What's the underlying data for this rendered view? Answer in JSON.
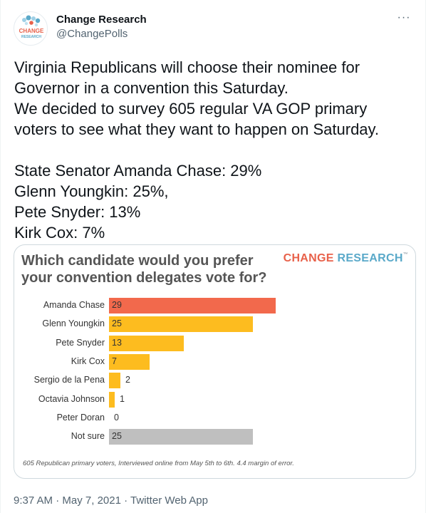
{
  "author": {
    "display_name": "Change Research",
    "handle": "@ChangePolls",
    "avatar_text_top": "CHANGE",
    "avatar_text_bottom": "RESEARCH"
  },
  "more_label": "···",
  "tweet": {
    "lines": [
      "Virginia Republicans will choose their nominee for",
      "Governor in a convention this Saturday.",
      "We decided to survey 605 regular VA GOP primary",
      "voters to see what they want to happen on Saturday."
    ],
    "results_lines": [
      "State Senator Amanda Chase: 29%",
      "Glenn Youngkin: 25%,",
      "Pete Snyder: 13%",
      "Kirk Cox: 7%"
    ]
  },
  "card": {
    "title_line1": "Which candidate would you prefer",
    "title_line2": "your convention delegates vote for?",
    "brand_part1": "CHANGE",
    "brand_part2": "RESEARCH",
    "brand_mark": "™",
    "footnote": "605 Republican primary voters, Interviewed online from May 5th to 6th. 4.4 margin of error."
  },
  "chart_data": {
    "type": "bar",
    "orientation": "horizontal",
    "title": "Which candidate would you prefer your convention delegates vote for?",
    "categories": [
      "Amanda Chase",
      "Glenn Youngkin",
      "Pete Snyder",
      "Kirk Cox",
      "Sergio de la Pena",
      "Octavia Johnson",
      "Peter Doran",
      "Not sure"
    ],
    "values": [
      29,
      25,
      13,
      7,
      2,
      1,
      0,
      25
    ],
    "colors": [
      "#f2694c",
      "#fdbc1f",
      "#fdbc1f",
      "#fdbc1f",
      "#fdbc1f",
      "#fdbc1f",
      "#fdbc1f",
      "#bfbfbf"
    ],
    "xlim": [
      0,
      30
    ],
    "grid": false,
    "legend": "none"
  },
  "meta": {
    "time": "9:37 AM",
    "separator": " · ",
    "date": "May 7, 2021",
    "source": "Twitter Web App"
  }
}
